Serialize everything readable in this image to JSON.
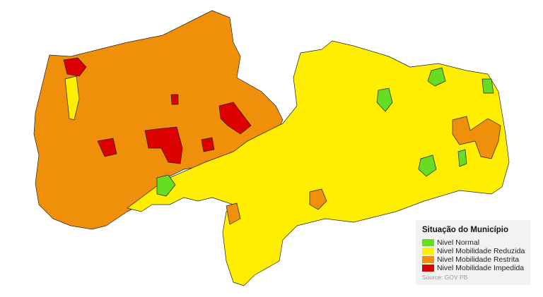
{
  "legend": {
    "title": "Situação do Município",
    "items": [
      {
        "label": "Nivel Normal",
        "color": "#66dd22"
      },
      {
        "label": "Nivel Mobilidade Reduzida",
        "color": "#ffee00"
      },
      {
        "label": "Nivel Mobilidade Restrita",
        "color": "#f0900a"
      },
      {
        "label": "Nivel Mobilidade Impedida",
        "color": "#dd0000"
      }
    ],
    "source": "Source: GOV PB"
  }
}
